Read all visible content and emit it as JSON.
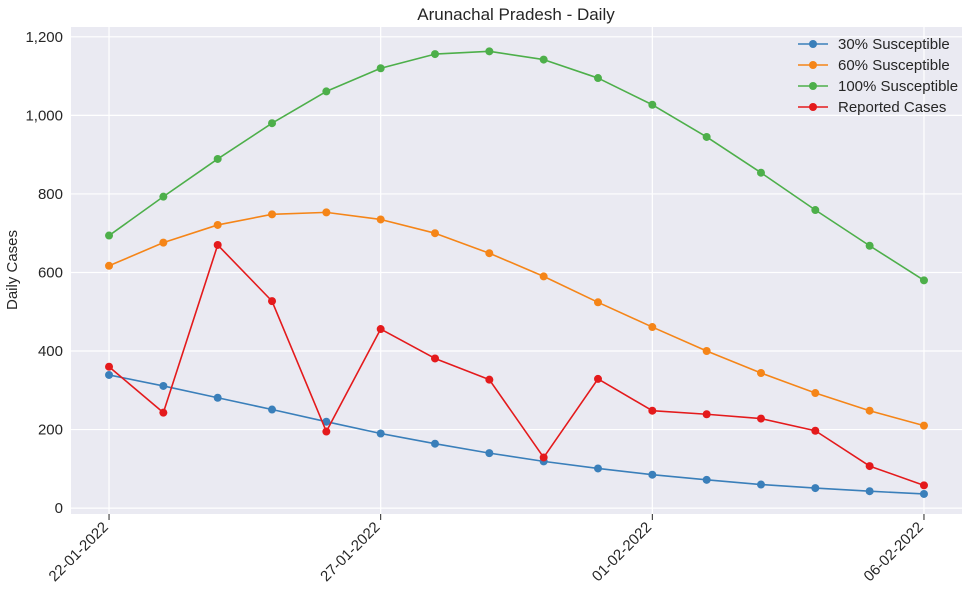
{
  "chart_data": {
    "type": "line",
    "title": "Arunachal Pradesh - Daily",
    "xlabel": "",
    "ylabel": "Daily Cases",
    "x": [
      "22-01-2022",
      "23-01-2022",
      "24-01-2022",
      "25-01-2022",
      "26-01-2022",
      "27-01-2022",
      "28-01-2022",
      "29-01-2022",
      "30-01-2022",
      "31-01-2022",
      "01-02-2022",
      "02-02-2022",
      "03-02-2022",
      "04-02-2022",
      "05-02-2022",
      "06-02-2022"
    ],
    "x_tick_labels": [
      "22-01-2022",
      "27-01-2022",
      "01-02-2022",
      "06-02-2022"
    ],
    "x_tick_indices": [
      0,
      5,
      10,
      15
    ],
    "ylim": [
      -15,
      1225
    ],
    "y_ticks": [
      0,
      200,
      400,
      600,
      800,
      1000,
      1200
    ],
    "y_tick_labels": [
      "0",
      "200",
      "400",
      "600",
      "800",
      "1,000",
      "1,200"
    ],
    "grid": true,
    "legend_position": "top-right",
    "series": [
      {
        "name": "30% Susceptible",
        "color": "#3a7fba",
        "values": [
          339,
          311,
          281,
          251,
          220,
          190,
          164,
          140,
          119,
          101,
          85,
          72,
          60,
          51,
          43,
          36
        ]
      },
      {
        "name": "60% Susceptible",
        "color": "#f58518",
        "values": [
          617,
          676,
          721,
          748,
          753,
          735,
          700,
          649,
          590,
          524,
          461,
          400,
          344,
          293,
          248,
          210
        ]
      },
      {
        "name": "100% Susceptible",
        "color": "#4daf4a",
        "values": [
          694,
          793,
          889,
          980,
          1061,
          1120,
          1156,
          1163,
          1142,
          1095,
          1027,
          945,
          854,
          759,
          668,
          580
        ]
      },
      {
        "name": "Reported Cases",
        "color": "#e41a1c",
        "values": [
          360,
          243,
          670,
          527,
          195,
          456,
          381,
          327,
          129,
          329,
          248,
          239,
          228,
          197,
          107,
          58
        ]
      }
    ]
  }
}
